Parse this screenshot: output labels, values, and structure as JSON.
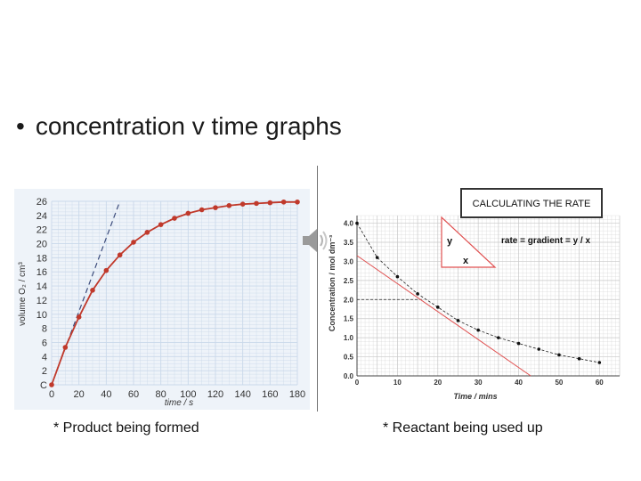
{
  "slide": {
    "bullet": "•",
    "title": "concentration v time graphs",
    "caption_left": "*  Product being formed",
    "caption_right": "*  Reactant being used up",
    "speaker_icon": "speaker-icon"
  },
  "colors": {
    "curve_red": "#c0392b",
    "tangent_red": "#e05050",
    "grid_blue": "#c9d8ea",
    "grid_gray": "#c8c8c8",
    "dashed_blue": "#3a4a7a"
  },
  "chart_data": [
    {
      "type": "line",
      "xlabel": "time / s",
      "ylabel": "volume O₂ / cm³",
      "xlim": [
        0,
        180
      ],
      "ylim": [
        0,
        26
      ],
      "x_ticks": [
        "0",
        "20",
        "40",
        "60",
        "80",
        "100",
        "120",
        "140",
        "160",
        "180"
      ],
      "y_ticks": [
        "C",
        "2",
        "4",
        "6",
        "8",
        "10",
        "12",
        "14",
        "16",
        "18",
        "20",
        "22",
        "24",
        "26"
      ],
      "grid": true,
      "series": [
        {
          "x": [
            0,
            10,
            20,
            30,
            40,
            50,
            60,
            70,
            80,
            90,
            100,
            110,
            120,
            130,
            140,
            150,
            160,
            170,
            180
          ],
          "y": [
            0,
            5.3,
            9.6,
            13.4,
            16.2,
            18.4,
            20.2,
            21.6,
            22.7,
            23.6,
            24.3,
            24.8,
            25.1,
            25.4,
            25.6,
            25.7,
            25.8,
            25.9,
            25.9
          ]
        }
      ],
      "tangent": {
        "x": [
          0,
          50
        ],
        "y": [
          0,
          26
        ]
      }
    },
    {
      "type": "scatter",
      "xlabel": "Time / mins",
      "ylabel": "Concentration / mol dm⁻³",
      "xlim": [
        0,
        65
      ],
      "ylim": [
        0,
        4.2
      ],
      "x_ticks": [
        "0",
        "10",
        "20",
        "30",
        "40",
        "50",
        "60"
      ],
      "y_ticks": [
        "0.0",
        "0.5",
        "1.0",
        "1.5",
        "2.0",
        "2.5",
        "3.0",
        "3.5",
        "4.0"
      ],
      "grid": true,
      "series": [
        {
          "x": [
            0,
            5,
            10,
            15,
            20,
            25,
            30,
            35,
            40,
            45,
            50,
            55,
            60
          ],
          "y": [
            4.0,
            3.1,
            2.6,
            2.15,
            1.8,
            1.45,
            1.2,
            1.0,
            0.85,
            0.7,
            0.55,
            0.45,
            0.35
          ]
        }
      ],
      "tangent": {
        "x": [
          0,
          43
        ],
        "y": [
          3.15,
          0
        ]
      },
      "guide_y": 2.0,
      "annotation_box": {
        "title": "CALCULATING THE RATE"
      },
      "formula": "rate = gradient = y / x",
      "triangle_labels": {
        "y": "y",
        "x": "x"
      }
    }
  ]
}
